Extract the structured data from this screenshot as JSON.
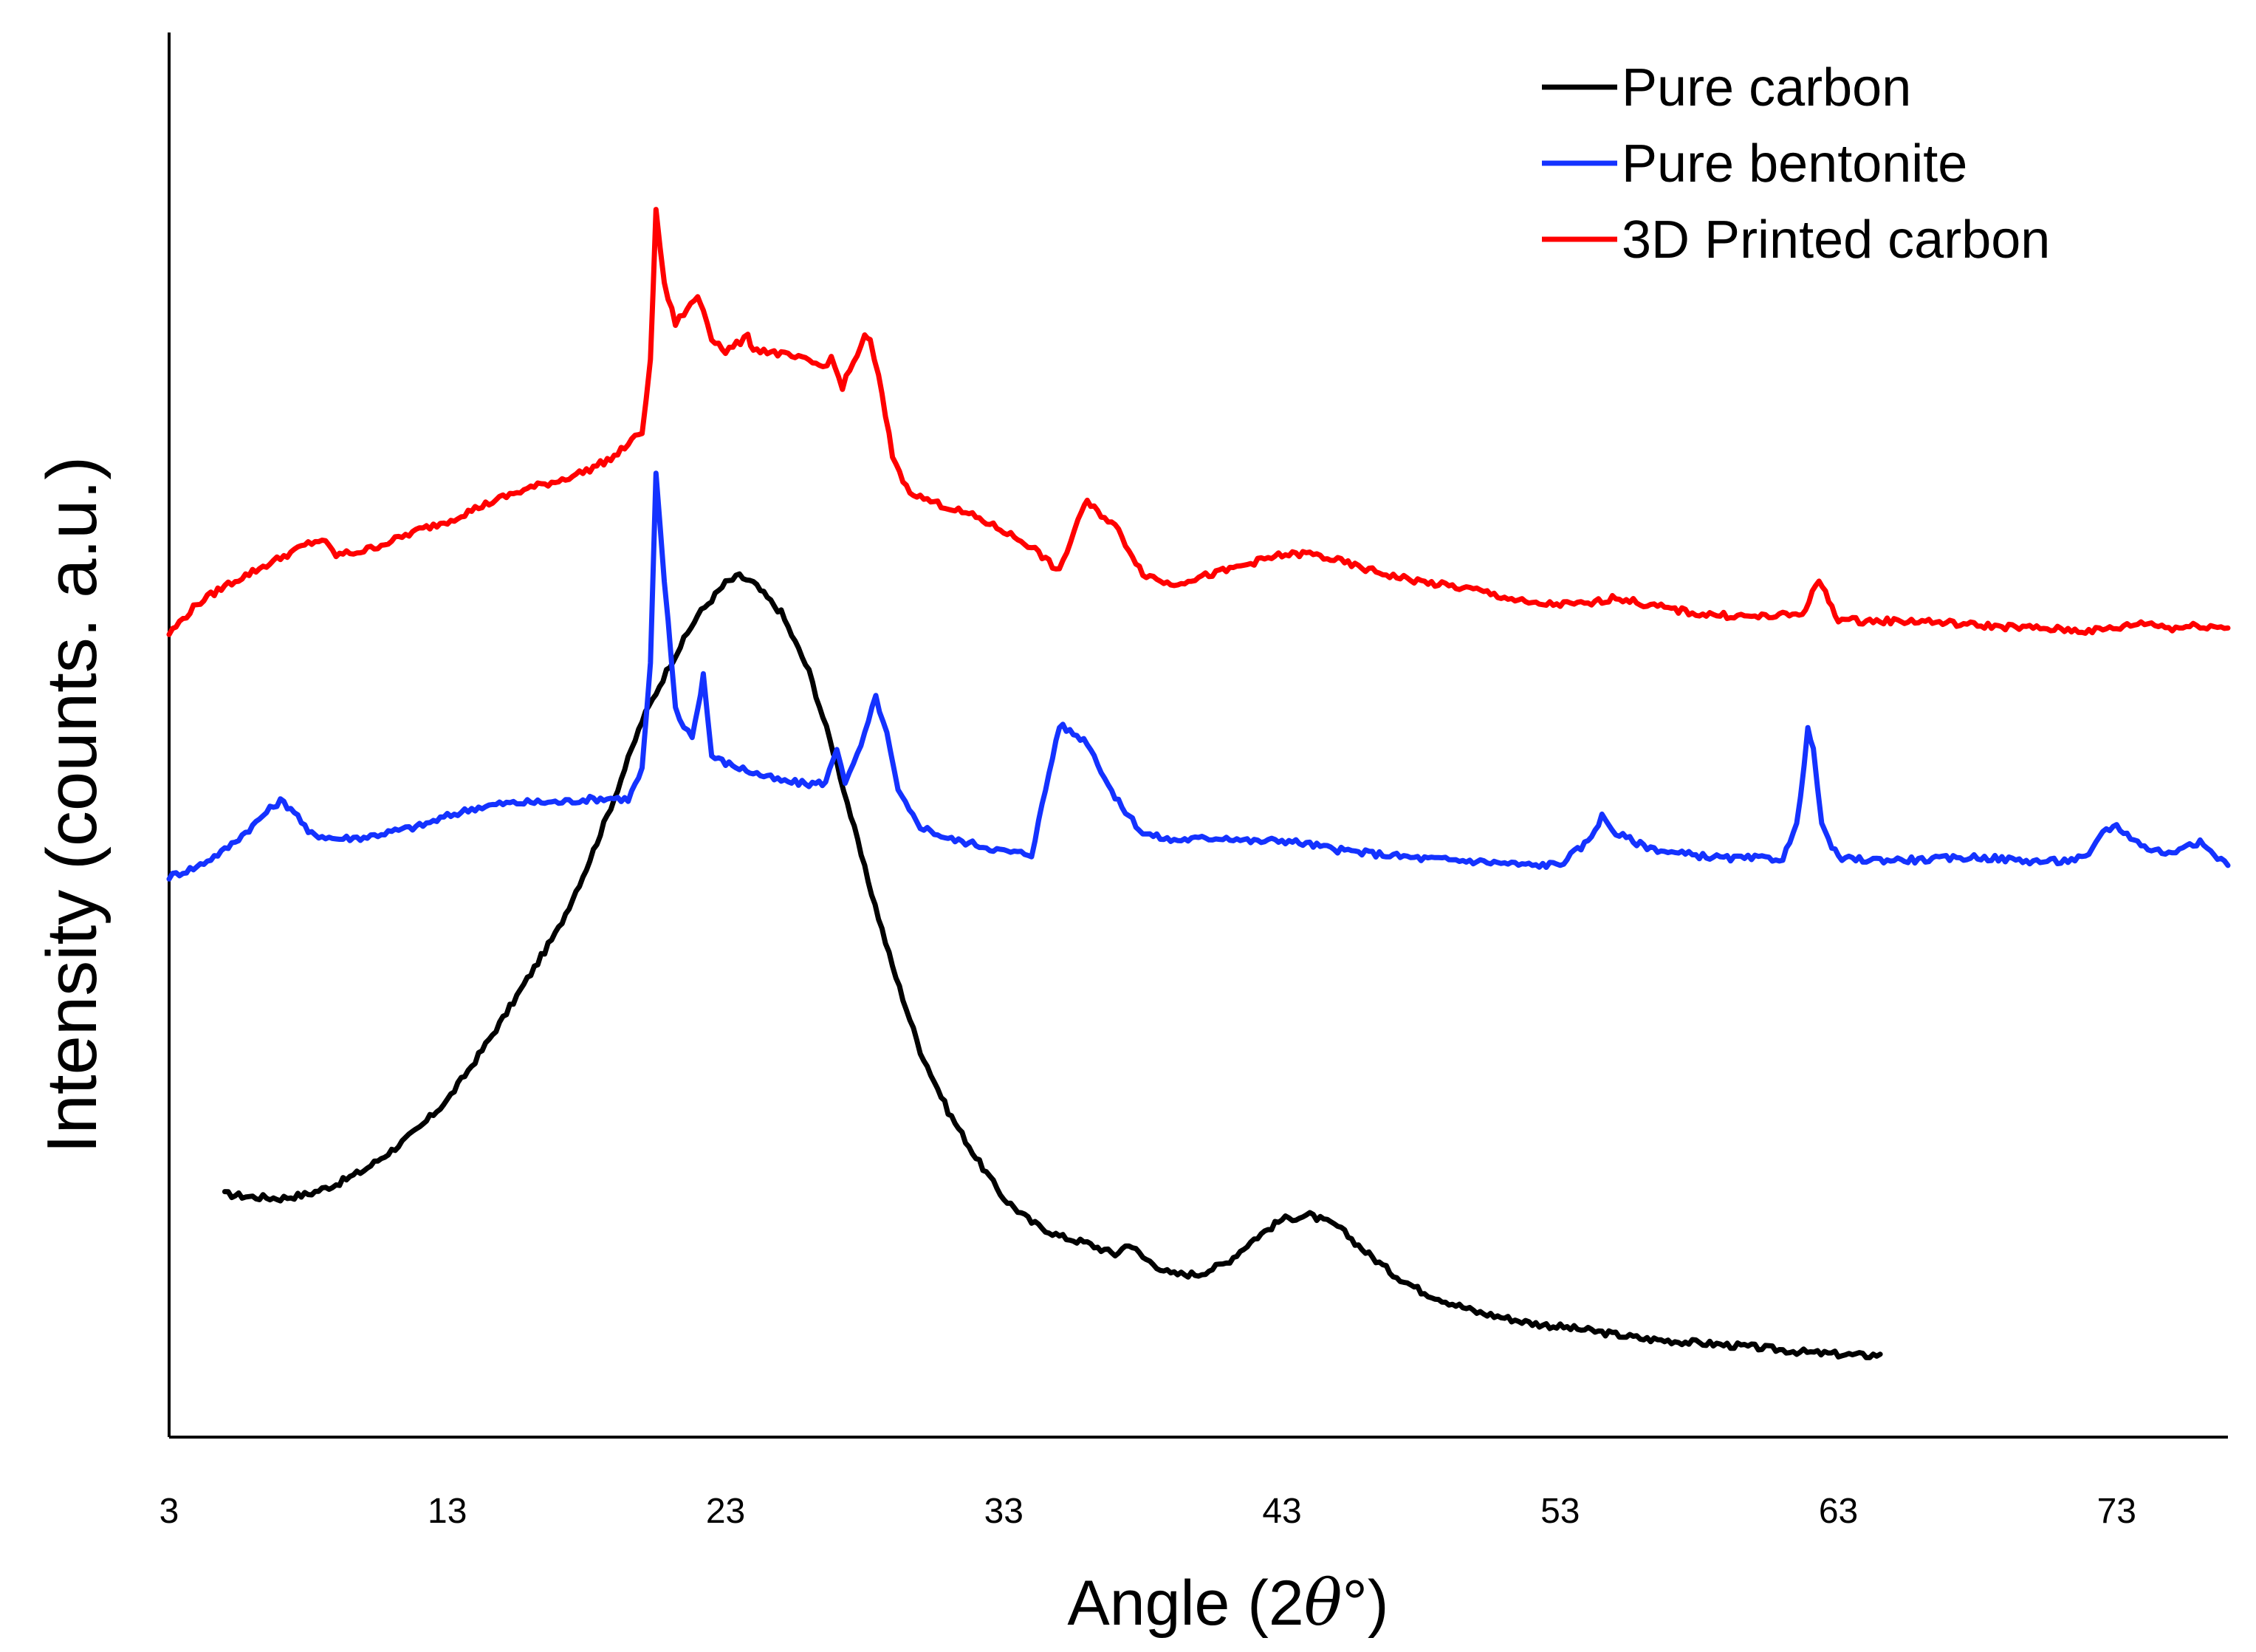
{
  "chart_data": {
    "type": "line",
    "title": "",
    "xlabel_prefix": "Angle (2",
    "xlabel_theta": "θ",
    "xlabel_suffix": "°)",
    "ylabel": "Intensity (counts. a.u.)",
    "xlim": [
      3,
      77
    ],
    "ylim": [
      0,
      100
    ],
    "x_ticks": [
      3,
      13,
      23,
      33,
      43,
      53,
      63,
      73
    ],
    "y_ticks_shown": false,
    "grid": false,
    "legend_position": "top-right",
    "series": [
      {
        "name": "Pure carbon",
        "color": "#000000",
        "x": [
          5,
          6,
          7,
          8,
          9,
          10,
          11,
          12,
          13,
          14,
          15,
          16,
          17,
          18,
          19,
          20,
          21,
          22,
          23,
          23.5,
          24,
          25,
          26,
          27,
          28,
          29,
          30,
          31,
          32,
          33,
          34,
          35,
          36,
          37,
          37.5,
          38,
          39,
          40,
          41,
          42,
          43,
          44,
          45,
          46,
          47,
          48,
          49,
          50,
          52,
          54,
          56,
          58,
          60,
          62,
          64,
          64.5
        ],
        "y": [
          17.3,
          17.1,
          17.0,
          17.3,
          18.0,
          19.0,
          20.4,
          22.0,
          24.0,
          26.8,
          29.8,
          33.0,
          36.2,
          40.5,
          45.5,
          51.0,
          55.0,
          58.5,
          60.8,
          61.3,
          60.8,
          58.7,
          54.5,
          48.0,
          40.5,
          33.5,
          27.5,
          23.2,
          19.9,
          17.0,
          15.3,
          14.3,
          13.8,
          13.0,
          13.8,
          12.8,
          11.6,
          11.6,
          12.4,
          14.1,
          15.5,
          15.8,
          15.0,
          13.2,
          11.6,
          10.4,
          9.6,
          8.9,
          8.1,
          7.6,
          7.0,
          6.7,
          6.4,
          6.0,
          5.8,
          5.9
        ]
      },
      {
        "name": "Pure bentonite",
        "color": "#1432FF",
        "x": [
          3,
          4,
          5,
          6,
          6.5,
          7,
          7.5,
          8,
          9,
          10,
          11,
          12,
          13,
          14,
          15,
          16,
          17,
          18,
          19,
          19.5,
          20,
          20.3,
          20.5,
          20.8,
          21.2,
          21.5,
          21.8,
          22,
          22.2,
          22.5,
          23,
          24,
          25,
          26,
          26.6,
          27,
          27.3,
          27.6,
          28,
          28.4,
          28.8,
          29.2,
          29.6,
          30,
          31,
          32,
          33,
          34,
          35,
          36,
          37,
          38,
          39,
          40,
          41,
          42,
          43,
          44,
          45,
          46,
          48,
          50,
          52,
          53,
          54,
          54.5,
          55,
          56,
          57,
          58,
          59,
          60,
          61,
          61.5,
          61.9,
          62.1,
          62.4,
          63,
          64,
          66,
          68,
          70,
          71,
          72,
          72.5,
          73,
          74,
          75,
          75.5,
          76,
          77
        ],
        "y": [
          39.9,
          40.6,
          41.8,
          43.5,
          44.5,
          45.3,
          44.6,
          43.0,
          42.6,
          42.7,
          43.1,
          43.5,
          44.2,
          44.8,
          45.1,
          45.2,
          45.2,
          45.4,
          45.5,
          45.4,
          47.5,
          55,
          68.5,
          61,
          52,
          50.5,
          50.0,
          51.8,
          54.3,
          48.5,
          48.0,
          47.3,
          46.7,
          46.5,
          46.6,
          49.1,
          46.7,
          47.8,
          50.0,
          52.7,
          50.0,
          46.0,
          44.6,
          43.5,
          42.6,
          42.2,
          41.7,
          41.5,
          50.7,
          49.5,
          45.5,
          43.0,
          42.5,
          42.6,
          42.7,
          42.4,
          42.5,
          42.2,
          41.8,
          41.6,
          41.2,
          41.0,
          40.7,
          40.8,
          42.4,
          44.2,
          43.0,
          42.1,
          41.6,
          41.4,
          41.2,
          41.2,
          41.2,
          43.5,
          50.3,
          49,
          43.5,
          41.2,
          41.1,
          41.1,
          41.3,
          41.0,
          41.0,
          41.3,
          43.2,
          43.5,
          42.0,
          41.5,
          42.3,
          42.3,
          40.7
        ]
      },
      {
        "name": "3D Printed carbon",
        "color": "#FF0000",
        "x": [
          3,
          4,
          5,
          6,
          7,
          8,
          8.5,
          9,
          10,
          11,
          12,
          13,
          14,
          15,
          16,
          17,
          18,
          19,
          19.5,
          20,
          20.3,
          20.5,
          20.8,
          21.2,
          21.5,
          22,
          22.2,
          22.5,
          23,
          23.8,
          24,
          25,
          26,
          26.5,
          26.8,
          27.2,
          27.6,
          28,
          28.2,
          28.5,
          29,
          29.5,
          30,
          31,
          32,
          33,
          34,
          35,
          35.8,
          36,
          37,
          38,
          39,
          40,
          41,
          42,
          43,
          44,
          45,
          46,
          47,
          48,
          50,
          52,
          54,
          55,
          56,
          58,
          60,
          61,
          61.7,
          62.3,
          63,
          64,
          66,
          68,
          70,
          72,
          73,
          74,
          75,
          76,
          77
        ],
        "y": [
          57.2,
          59.3,
          60.6,
          61.6,
          62.6,
          63.6,
          63.9,
          62.8,
          63.1,
          63.8,
          64.6,
          65.2,
          66.1,
          66.9,
          67.6,
          68.1,
          68.8,
          69.8,
          70.7,
          71.6,
          76.5,
          87.4,
          82,
          79.3,
          80.0,
          81.2,
          80.3,
          78.3,
          77.3,
          78.3,
          77.5,
          77.1,
          76.6,
          76.2,
          76.8,
          74.8,
          76.5,
          78.3,
          78.0,
          75.5,
          69.9,
          67.6,
          66.9,
          66.2,
          65.5,
          64.5,
          63.4,
          61.6,
          66.0,
          66.5,
          64.9,
          61.5,
          60.7,
          61.2,
          61.7,
          62.3,
          62.8,
          62.9,
          62.4,
          61.8,
          61.3,
          60.9,
          60.3,
          59.3,
          59.3,
          59.8,
          59.3,
          58.6,
          58.4,
          58.5,
          58.6,
          61.0,
          58.2,
          58.1,
          58.1,
          57.8,
          57.6,
          57.4,
          57.6,
          58.0,
          57.6,
          57.8,
          57.6
        ]
      }
    ]
  }
}
